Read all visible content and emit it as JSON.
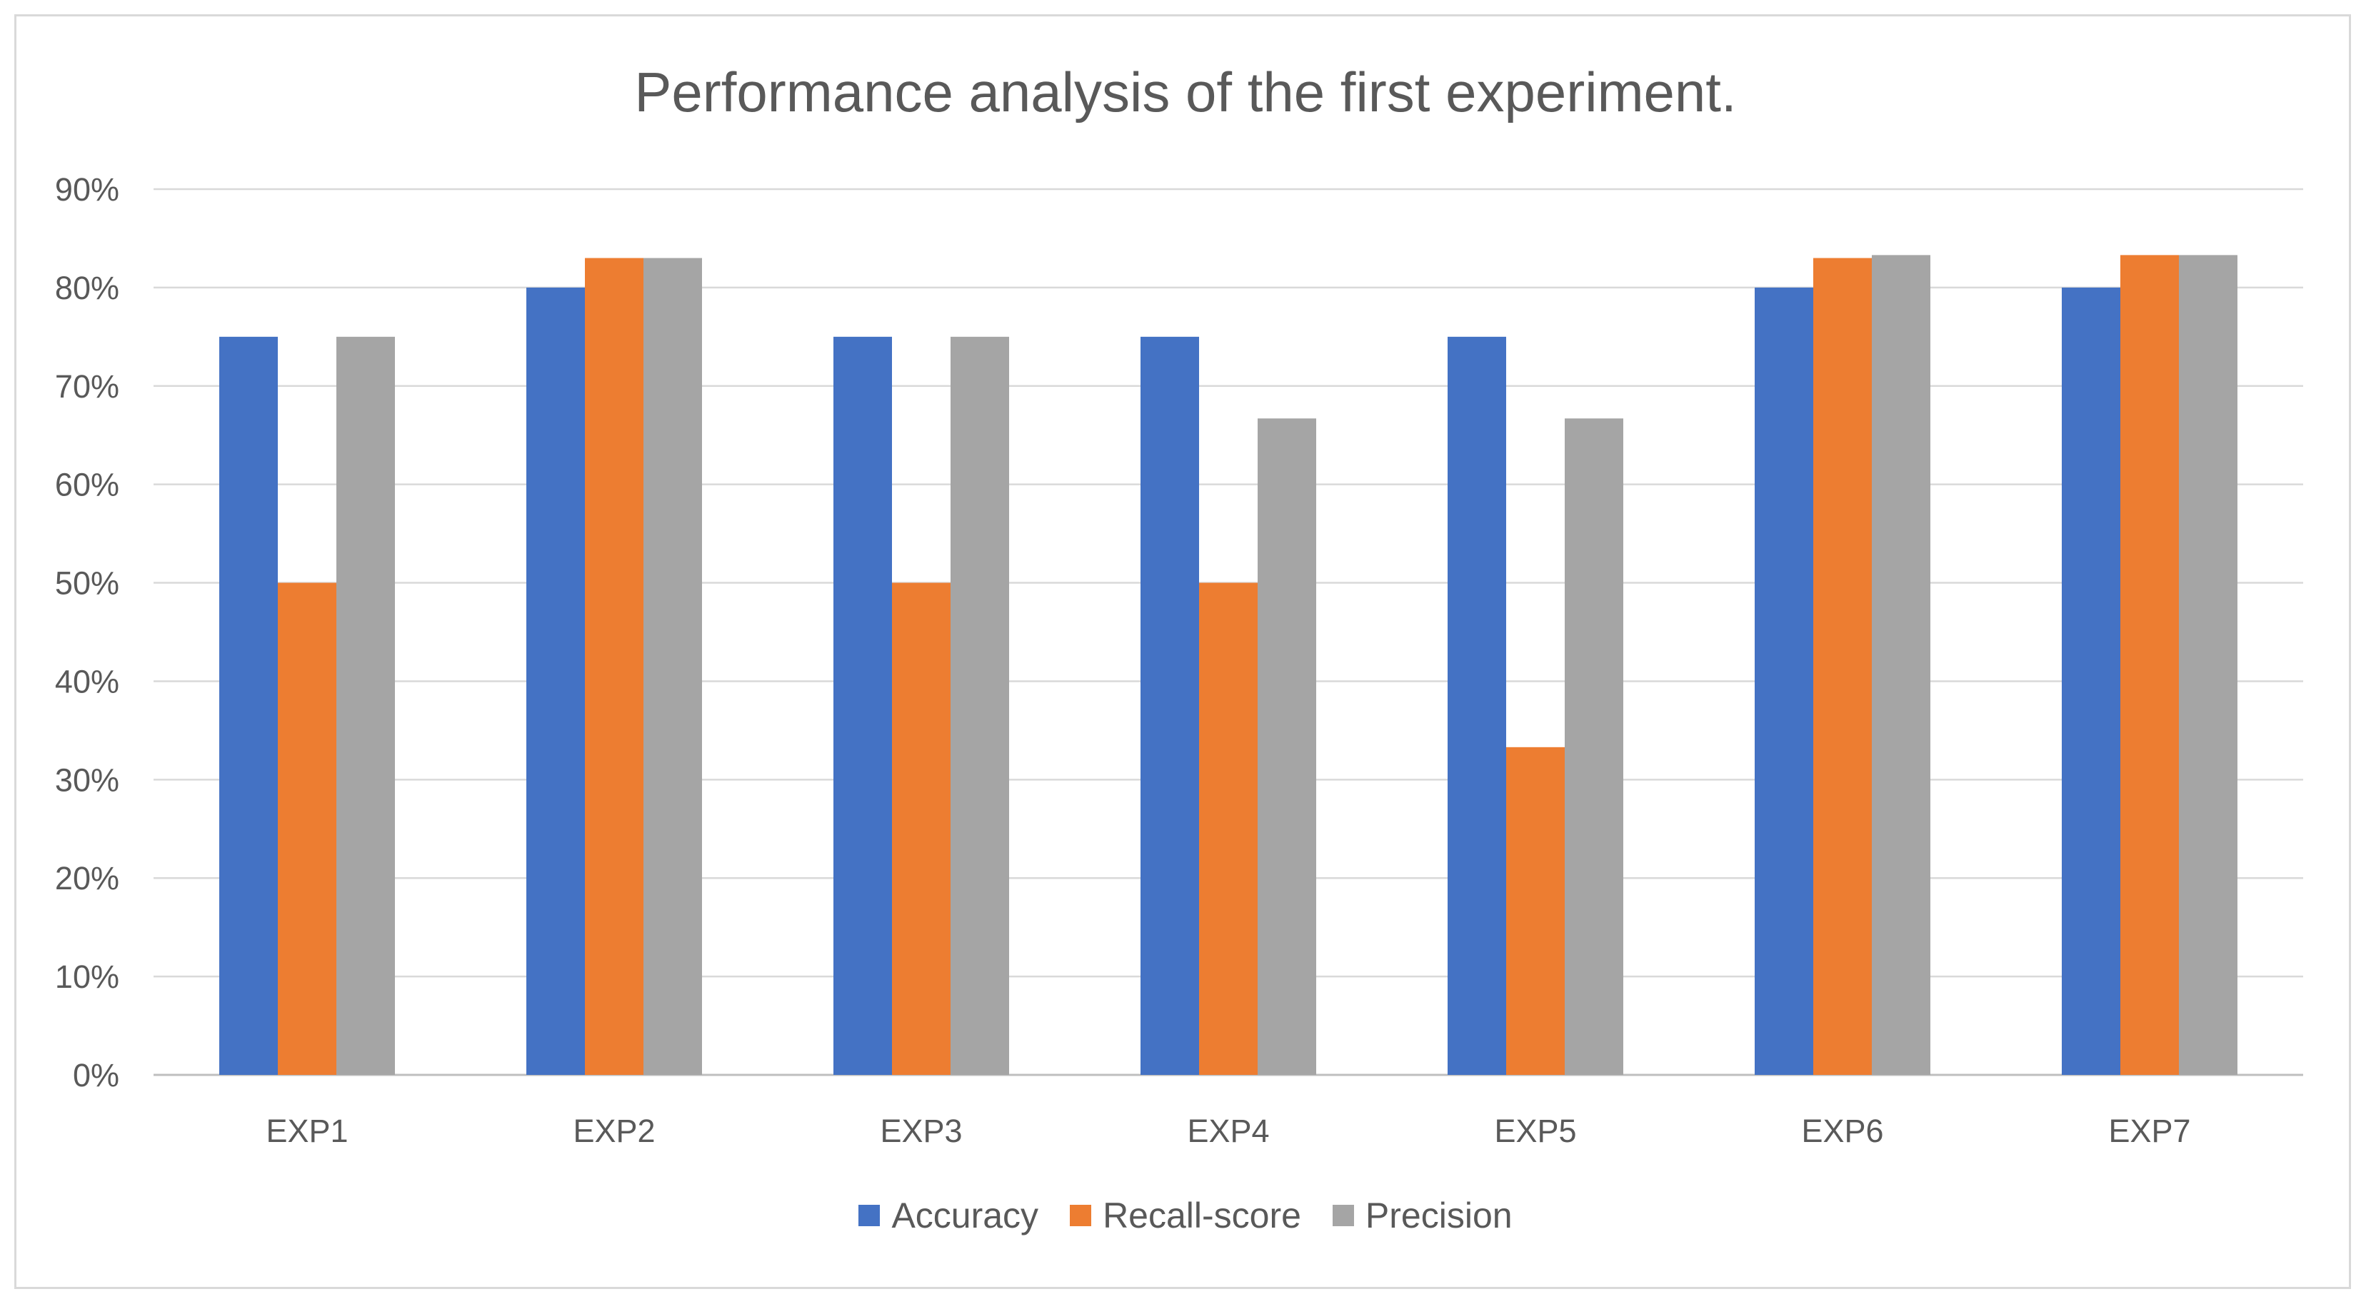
{
  "chart_data": {
    "type": "bar",
    "title": "Performance analysis of the first experiment.",
    "xlabel": "",
    "ylabel": "",
    "ylim": [
      0,
      90
    ],
    "y_ticks": [
      "0%",
      "10%",
      "20%",
      "30%",
      "40%",
      "50%",
      "60%",
      "70%",
      "80%",
      "90%"
    ],
    "grid": true,
    "legend_position": "bottom-center",
    "categories": [
      "EXP1",
      "EXP2",
      "EXP3",
      "EXP4",
      "EXP5",
      "EXP6",
      "EXP7"
    ],
    "series": [
      {
        "name": "Accuracy",
        "color": "#4472c4",
        "values": [
          75,
          80,
          75,
          75,
          75,
          80,
          80
        ]
      },
      {
        "name": "Recall-score",
        "color": "#ed7d31",
        "values": [
          50,
          83,
          50,
          50,
          33.3,
          83,
          83.3
        ]
      },
      {
        "name": "Precision",
        "color": "#a5a5a5",
        "values": [
          75,
          83,
          75,
          66.7,
          66.7,
          83.3,
          83.3
        ]
      }
    ]
  }
}
